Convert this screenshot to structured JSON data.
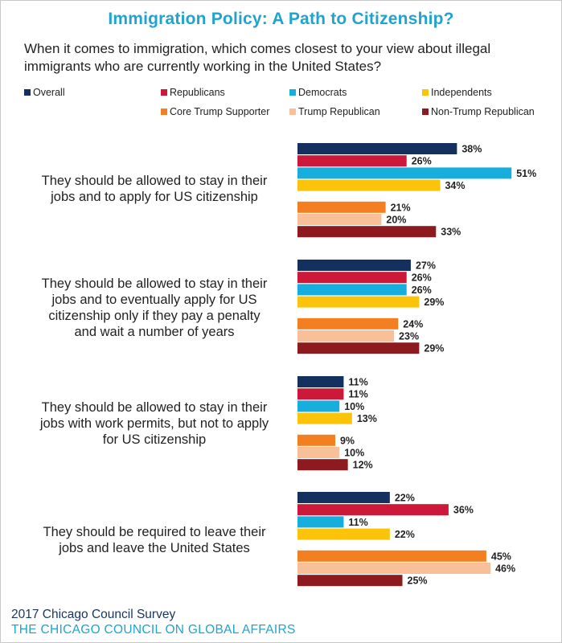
{
  "chart_data": {
    "type": "bar",
    "title": "Immigration Policy: A Path to Citizenship?",
    "subtitle": "When it comes to immigration, which comes closest to your view about illegal immigrants who are currently working in the United States?",
    "value_suffix": "%",
    "legend": [
      {
        "name": "Overall",
        "color": "#14305e"
      },
      {
        "name": "Republicans",
        "color": "#cc1939"
      },
      {
        "name": "Democrats",
        "color": "#16aedd"
      },
      {
        "name": "Independents",
        "color": "#fcc30b"
      },
      {
        "name": "Core Trump Supporter",
        "color": "#f47f20"
      },
      {
        "name": "Trump Republican",
        "color": "#f9bf98"
      },
      {
        "name": "Non-Trump Republican",
        "color": "#8c1a1e"
      }
    ],
    "categories": [
      "They should be allowed to stay in their jobs and to apply for US citizenship",
      "They should be allowed to stay in their jobs and to eventually apply for US citizenship only if they pay a penalty and wait a number of years",
      "They should be allowed to stay in their jobs with work permits, but not to apply for US citizenship",
      "They should be required to leave their jobs and leave the United States"
    ],
    "series": [
      {
        "name": "Overall",
        "values": [
          38,
          27,
          11,
          22
        ]
      },
      {
        "name": "Republicans",
        "values": [
          26,
          26,
          11,
          36
        ]
      },
      {
        "name": "Democrats",
        "values": [
          51,
          26,
          10,
          11
        ]
      },
      {
        "name": "Independents",
        "values": [
          34,
          29,
          13,
          22
        ]
      },
      {
        "name": "Core Trump Supporter",
        "values": [
          21,
          24,
          9,
          45
        ]
      },
      {
        "name": "Trump Republican",
        "values": [
          20,
          23,
          10,
          46
        ]
      },
      {
        "name": "Non-Trump Republican",
        "values": [
          33,
          29,
          12,
          25
        ]
      }
    ]
  },
  "category_lines": [
    [
      "They should be allowed to stay in their",
      "jobs and to apply for US citizenship"
    ],
    [
      "They should be allowed to stay in their",
      "jobs and to eventually apply for US",
      "citizenship only if they pay a penalty",
      "and wait a number of years"
    ],
    [
      "They should be allowed to stay in their",
      "jobs with work permits, but not to apply",
      "for US citizenship"
    ],
    [
      "They should be required to leave their",
      "jobs and leave the United States"
    ]
  ],
  "footer": {
    "survey": "2017 Chicago Council Survey",
    "org": "THE CHICAGO COUNCIL ON GLOBAL AFFAIRS"
  }
}
